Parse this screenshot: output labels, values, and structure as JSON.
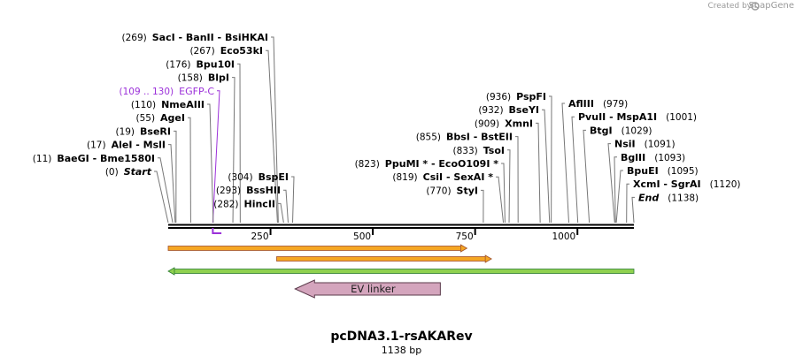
{
  "credit": {
    "text": "Created by",
    "brand": "SnapGene"
  },
  "plasmid": {
    "name": "pcDNA3.1-rsAKARev",
    "length_label": "1138 bp",
    "length": 1138
  },
  "ruler": {
    "ticks": [
      {
        "pos": 250,
        "label": "250"
      },
      {
        "pos": 500,
        "label": "500"
      },
      {
        "pos": 750,
        "label": "750"
      },
      {
        "pos": 1000,
        "label": "1000"
      }
    ]
  },
  "left_labels": [
    {
      "pos": 269,
      "num": "(269)",
      "names": "SacI  - BanII  - BsiHKAI"
    },
    {
      "pos": 267,
      "num": "(267)",
      "names": "Eco53kI"
    },
    {
      "pos": 176,
      "num": "(176)",
      "names": "Bpu10I"
    },
    {
      "pos": 158,
      "num": "(158)",
      "names": "BlpI"
    },
    {
      "pos": 109,
      "num": "(109 .. 130)",
      "names": "EGFP-C",
      "feature": true
    },
    {
      "pos": 110,
      "num": "(110)",
      "names": "NmeAIII"
    },
    {
      "pos": 55,
      "num": "(55)",
      "names": "AgeI"
    },
    {
      "pos": 19,
      "num": "(19)",
      "names": "BseRI"
    },
    {
      "pos": 17,
      "num": "(17)",
      "names": "AleI  - MslI"
    },
    {
      "pos": 11,
      "num": "(11)",
      "names": "BaeGI  - Bme1580I"
    },
    {
      "pos": 0,
      "num": "(0)",
      "names": "Start",
      "italic": true
    }
  ],
  "mid_labels": [
    {
      "pos": 304,
      "num": "(304)",
      "names": "BspEI"
    },
    {
      "pos": 293,
      "num": "(293)",
      "names": "BssHII"
    },
    {
      "pos": 282,
      "num": "(282)",
      "names": "HincII"
    }
  ],
  "center_labels": [
    {
      "pos": 936,
      "num": "(936)",
      "names": "PspFI"
    },
    {
      "pos": 932,
      "num": "(932)",
      "names": "BseYI"
    },
    {
      "pos": 909,
      "num": "(909)",
      "names": "XmnI"
    },
    {
      "pos": 855,
      "num": "(855)",
      "names": "BbsI  - BstEII"
    },
    {
      "pos": 833,
      "num": "(833)",
      "names": "TsoI"
    },
    {
      "pos": 823,
      "num": "(823)",
      "names": "PpuMI *  - EcoO109I *"
    },
    {
      "pos": 819,
      "num": "(819)",
      "names": "CsiI  - SexAI *"
    },
    {
      "pos": 770,
      "num": "(770)",
      "names": "StyI"
    }
  ],
  "right_labels": [
    {
      "pos": 979,
      "num": "(979)",
      "names": "AflIII"
    },
    {
      "pos": 1001,
      "num": "(1001)",
      "names": "PvuII  - MspA1I"
    },
    {
      "pos": 1029,
      "num": "(1029)",
      "names": "BtgI"
    },
    {
      "pos": 1091,
      "num": "(1091)",
      "names": "NsiI"
    },
    {
      "pos": 1093,
      "num": "(1093)",
      "names": "BglII"
    },
    {
      "pos": 1095,
      "num": "(1095)",
      "names": "BpuEI"
    },
    {
      "pos": 1120,
      "num": "(1120)",
      "names": "XcmI  - SgrAI"
    },
    {
      "pos": 1138,
      "num": "(1138)",
      "names": "End",
      "italic": true
    }
  ],
  "features": [
    {
      "name": "orange-feature-1",
      "start": 0,
      "end": 730,
      "color": "#f5a623",
      "border": "#a0522d",
      "direction": "right"
    },
    {
      "name": "orange-feature-2",
      "start": 265,
      "end": 790,
      "color": "#f5a623",
      "border": "#a0522d",
      "direction": "right"
    },
    {
      "name": "green-feature",
      "start": 0,
      "end": 1138,
      "color": "#8fd14f",
      "border": "#2e7d32",
      "direction": "left"
    },
    {
      "name": "EV linker",
      "label": "EV linker",
      "start": 310,
      "end": 665,
      "color": "#d4a5bd",
      "border": "#5b3a4b",
      "direction": "left"
    }
  ],
  "colors": {
    "feature_label": "#9b30d9",
    "backbone": "#000000",
    "ruler_text": "#000000"
  }
}
